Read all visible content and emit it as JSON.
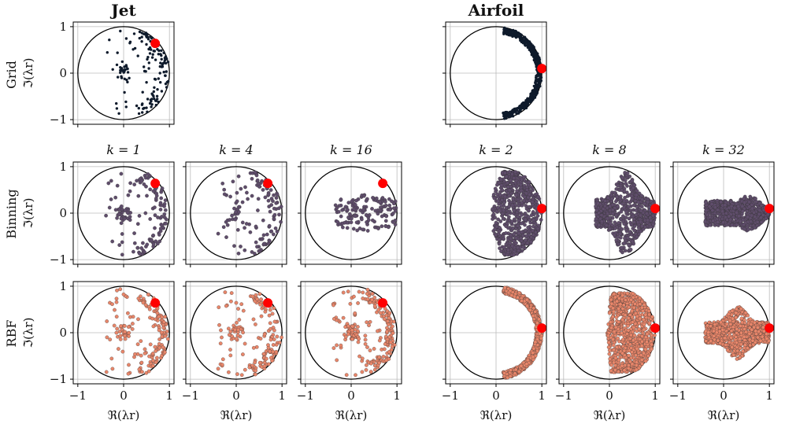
{
  "header": {
    "jet_title": "Jet",
    "airfoil_title": "Airfoil"
  },
  "row_labels": {
    "grid": "Grid",
    "binning": "Binning",
    "rbf": "RBF"
  },
  "axis_labels": {
    "ylabel": "ℑ(λr)",
    "xlabel": "ℜ(λr)"
  },
  "colors": {
    "grid_points": "#0e1a2b",
    "binning_points": "#5f4d6b",
    "rbf_points": "#e8866a",
    "highlight": "#ff0000",
    "circle": "#000000",
    "gridline": "#bbbbbb"
  },
  "chart_data": [
    {
      "id": "grid-jet",
      "type": "scatter",
      "row": "Grid",
      "dataset": "Jet",
      "title": "",
      "distribution": "jet",
      "density": 150,
      "xlim": [
        -1.1,
        1.1
      ],
      "ylim": [
        -1.1,
        1.1
      ],
      "xticks": [
        -1,
        0,
        1
      ],
      "yticks": [
        -1,
        0,
        1
      ],
      "highlight_point": {
        "x": 0.69,
        "y": 0.64
      },
      "unit_circle": true
    },
    {
      "id": "grid-airfoil",
      "type": "scatter",
      "row": "Grid",
      "dataset": "Airfoil",
      "title": "",
      "distribution": "airfoil",
      "density": 520,
      "xlim": [
        -1.1,
        1.1
      ],
      "ylim": [
        -1.1,
        1.1
      ],
      "xticks": [
        -1,
        0,
        1
      ],
      "yticks": [
        -1,
        0,
        1
      ],
      "highlight_point": {
        "x": 1.0,
        "y": 0.1
      },
      "unit_circle": true
    },
    {
      "id": "binning-jet-k1",
      "type": "scatter",
      "row": "Binning",
      "dataset": "Jet",
      "title": "k = 1",
      "distribution": "jet",
      "density": 140,
      "xlim": [
        -1.1,
        1.1
      ],
      "ylim": [
        -1.1,
        1.1
      ],
      "xticks": [
        -1,
        0,
        1
      ],
      "yticks": [
        -1,
        0,
        1
      ],
      "highlight_point": {
        "x": 0.69,
        "y": 0.64
      },
      "unit_circle": true
    },
    {
      "id": "binning-jet-k4",
      "type": "scatter",
      "row": "Binning",
      "dataset": "Jet",
      "title": "k = 4",
      "distribution": "jet",
      "density": 130,
      "xlim": [
        -1.1,
        1.1
      ],
      "ylim": [
        -1.1,
        1.1
      ],
      "xticks": [
        -1,
        0,
        1
      ],
      "yticks": [
        -1,
        0,
        1
      ],
      "highlight_point": {
        "x": 0.69,
        "y": 0.64
      },
      "unit_circle": true
    },
    {
      "id": "binning-jet-k16",
      "type": "scatter",
      "row": "Binning",
      "dataset": "Jet",
      "title": "k = 16",
      "distribution": "jet-compact",
      "density": 150,
      "xlim": [
        -1.1,
        1.1
      ],
      "ylim": [
        -1.1,
        1.1
      ],
      "xticks": [
        -1,
        0,
        1
      ],
      "yticks": [
        -1,
        0,
        1
      ],
      "highlight_point": {
        "x": 0.69,
        "y": 0.64
      },
      "unit_circle": true
    },
    {
      "id": "binning-airfoil-k2",
      "type": "scatter",
      "row": "Binning",
      "dataset": "Airfoil",
      "title": "k = 2",
      "distribution": "airfoil-wide",
      "density": 650,
      "xlim": [
        -1.1,
        1.1
      ],
      "ylim": [
        -1.1,
        1.1
      ],
      "xticks": [
        -1,
        0,
        1
      ],
      "yticks": [
        -1,
        0,
        1
      ],
      "highlight_point": {
        "x": 1.0,
        "y": 0.1
      },
      "unit_circle": true
    },
    {
      "id": "binning-airfoil-k8",
      "type": "scatter",
      "row": "Binning",
      "dataset": "Airfoil",
      "title": "k = 8",
      "distribution": "blob-medium",
      "density": 700,
      "xlim": [
        -1.1,
        1.1
      ],
      "ylim": [
        -1.1,
        1.1
      ],
      "xticks": [
        -1,
        0,
        1
      ],
      "yticks": [
        -1,
        0,
        1
      ],
      "highlight_point": {
        "x": 1.0,
        "y": 0.1
      },
      "unit_circle": true
    },
    {
      "id": "binning-airfoil-k32",
      "type": "scatter",
      "row": "Binning",
      "dataset": "Airfoil",
      "title": "k = 32",
      "distribution": "blob-small",
      "density": 800,
      "xlim": [
        -1.1,
        1.1
      ],
      "ylim": [
        -1.1,
        1.1
      ],
      "xticks": [
        -1,
        0,
        1
      ],
      "yticks": [
        -1,
        0,
        1
      ],
      "highlight_point": {
        "x": 1.0,
        "y": 0.1
      },
      "unit_circle": true
    },
    {
      "id": "rbf-jet-k1",
      "type": "scatter",
      "row": "RBF",
      "dataset": "Jet",
      "title": "",
      "distribution": "jet",
      "density": 170,
      "xlim": [
        -1.1,
        1.1
      ],
      "ylim": [
        -1.1,
        1.1
      ],
      "xticks": [
        -1,
        0,
        1
      ],
      "yticks": [
        -1,
        0,
        1
      ],
      "highlight_point": {
        "x": 0.69,
        "y": 0.64
      },
      "unit_circle": true
    },
    {
      "id": "rbf-jet-k4",
      "type": "scatter",
      "row": "RBF",
      "dataset": "Jet",
      "title": "",
      "distribution": "jet",
      "density": 170,
      "xlim": [
        -1.1,
        1.1
      ],
      "ylim": [
        -1.1,
        1.1
      ],
      "xticks": [
        -1,
        0,
        1
      ],
      "yticks": [
        -1,
        0,
        1
      ],
      "highlight_point": {
        "x": 0.69,
        "y": 0.64
      },
      "unit_circle": true
    },
    {
      "id": "rbf-jet-k16",
      "type": "scatter",
      "row": "RBF",
      "dataset": "Jet",
      "title": "",
      "distribution": "jet-dense",
      "density": 220,
      "xlim": [
        -1.1,
        1.1
      ],
      "ylim": [
        -1.1,
        1.1
      ],
      "xticks": [
        -1,
        0,
        1
      ],
      "yticks": [
        -1,
        0,
        1
      ],
      "highlight_point": {
        "x": 0.69,
        "y": 0.64
      },
      "unit_circle": true
    },
    {
      "id": "rbf-airfoil-k2",
      "type": "scatter",
      "row": "RBF",
      "dataset": "Airfoil",
      "title": "",
      "distribution": "airfoil",
      "density": 700,
      "xlim": [
        -1.1,
        1.1
      ],
      "ylim": [
        -1.1,
        1.1
      ],
      "xticks": [
        -1,
        0,
        1
      ],
      "yticks": [
        -1,
        0,
        1
      ],
      "highlight_point": {
        "x": 1.0,
        "y": 0.1
      },
      "unit_circle": true
    },
    {
      "id": "rbf-airfoil-k8",
      "type": "scatter",
      "row": "RBF",
      "dataset": "Airfoil",
      "title": "",
      "distribution": "airfoil-fill",
      "density": 900,
      "xlim": [
        -1.1,
        1.1
      ],
      "ylim": [
        -1.1,
        1.1
      ],
      "xticks": [
        -1,
        0,
        1
      ],
      "yticks": [
        -1,
        0,
        1
      ],
      "highlight_point": {
        "x": 1.0,
        "y": 0.1
      },
      "unit_circle": true
    },
    {
      "id": "rbf-airfoil-k32",
      "type": "scatter",
      "row": "RBF",
      "dataset": "Airfoil",
      "title": "",
      "distribution": "blob-rbf",
      "density": 900,
      "xlim": [
        -1.1,
        1.1
      ],
      "ylim": [
        -1.1,
        1.1
      ],
      "xticks": [
        -1,
        0,
        1
      ],
      "yticks": [
        -1,
        0,
        1
      ],
      "highlight_point": {
        "x": 1.0,
        "y": 0.1
      },
      "unit_circle": true
    }
  ]
}
